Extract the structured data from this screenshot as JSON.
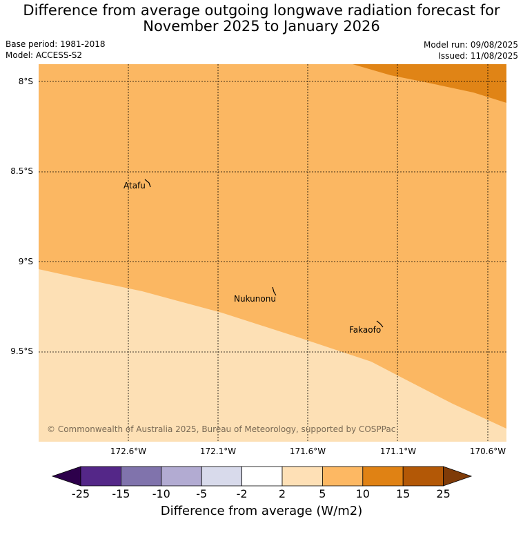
{
  "title_line1": "Difference from average outgoing longwave radiation forecast for",
  "title_line2": "November 2025 to January 2026",
  "base_period": "Base period: 1981-2018",
  "model": "Model: ACCESS-S2",
  "model_run": "Model run: 09/08/2025",
  "issued": "Issued: 11/08/2025",
  "lat_labels": [
    "8°S",
    "8.5°S",
    "9°S",
    "9.5°S"
  ],
  "lon_labels": [
    "172.6°W",
    "172.1°W",
    "171.6°W",
    "171.1°W",
    "170.6°W"
  ],
  "places": {
    "atafu": "Atafu",
    "nukunonu": "Nukunonu",
    "fakaofo": "Fakaofo"
  },
  "copyright": "© Commonwealth of Australia 2025, Bureau of Meteorology, supported by COSPPac",
  "colorbar": {
    "ticks": [
      "-25",
      "-15",
      "-10",
      "-5",
      "-2",
      "2",
      "5",
      "10",
      "15",
      "25"
    ],
    "label": "Difference from average (W/m2)",
    "colors": {
      "below_min": "#2d004b",
      "c1": "#542788",
      "c2": "#8073ac",
      "c3": "#b2abd2",
      "c4": "#d8daeb",
      "c5": "#ffffff",
      "c6": "#fee0b6",
      "c7": "#fdb863",
      "c8": "#e08214",
      "c9": "#b35806",
      "above_max": "#7f3b08"
    }
  },
  "map_fill": {
    "band_5_10": "#fbb762",
    "band_2_5": "#fde0b5",
    "band_10_15": "#e08416"
  }
}
